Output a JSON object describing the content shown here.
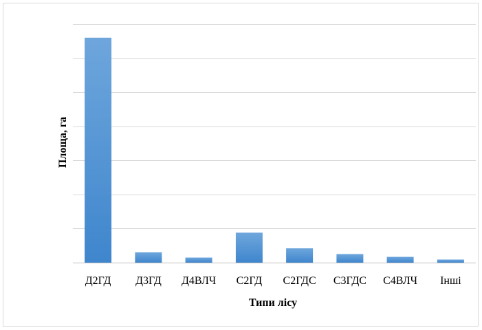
{
  "chart_data": {
    "type": "bar",
    "title": "",
    "xlabel": "Типи лісу",
    "ylabel": "Площа, га",
    "categories": [
      "Д2ГД",
      "Д3ГД",
      "Д4ВЛЧ",
      "С2ГД",
      "С2ГДС",
      "С3ГДС",
      "С4ВЛЧ",
      "Інші"
    ],
    "values": [
      6.6,
      0.3,
      0.15,
      0.88,
      0.42,
      0.25,
      0.17,
      0.09
    ],
    "ylim": [
      0,
      7
    ],
    "y_ticks": [
      0,
      1,
      2,
      3,
      4,
      5,
      6,
      7
    ],
    "y_tick_labels_visible": false,
    "grid": true,
    "legend": "none",
    "colors": {
      "bar": "#5b9bd5",
      "bar_light": "#6ea6dc",
      "bar_dark": "#3f86cd",
      "grid": "#d9d9d9",
      "axis": "#bfbfbf"
    }
  }
}
